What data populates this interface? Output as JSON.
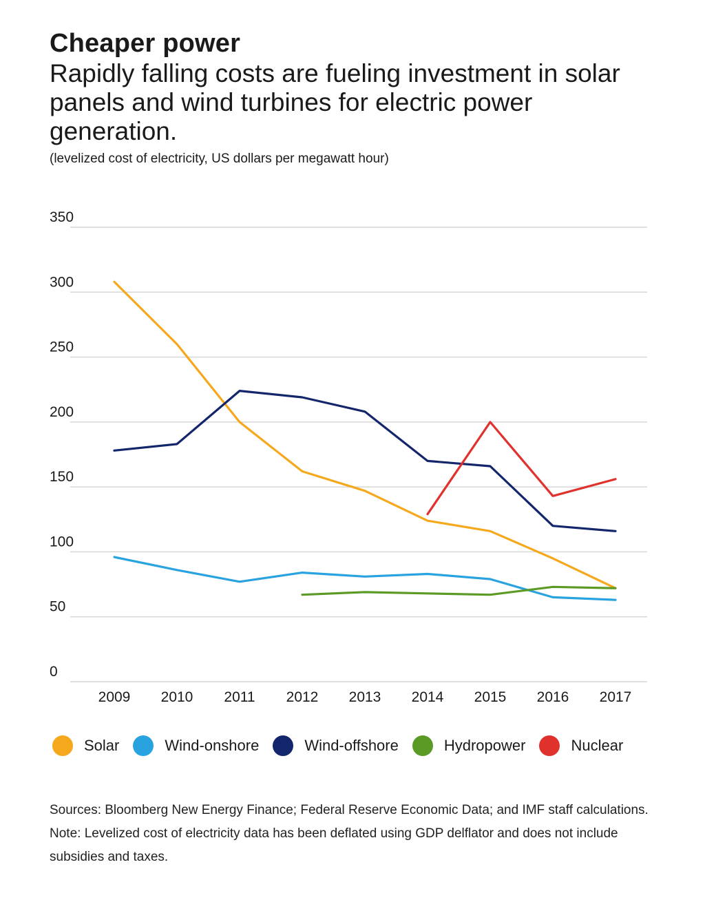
{
  "header": {
    "title": "Cheaper power",
    "subtitle": "Rapidly falling costs are fueling investment in solar panels and wind turbines for electric power generation.",
    "units": "(levelized cost of electricity, US dollars per megawatt hour)"
  },
  "chart_data": {
    "type": "line",
    "title": "Cheaper power",
    "xlabel": "",
    "ylabel": "US dollars per megawatt hour",
    "categories": [
      "2009",
      "2010",
      "2011",
      "2012",
      "2013",
      "2014",
      "2015",
      "2016",
      "2017"
    ],
    "ylim": [
      0,
      350
    ],
    "yticks": [
      "0",
      "50",
      "100",
      "150",
      "200",
      "250",
      "300",
      "350"
    ],
    "grid": true,
    "legend_position": "bottom",
    "series": [
      {
        "name": "Solar",
        "color": "#f5a81c",
        "values": [
          308,
          260,
          200,
          162,
          147,
          124,
          116,
          95,
          72
        ]
      },
      {
        "name": "Wind-onshore",
        "color": "#29a3e0",
        "values": [
          96,
          86,
          77,
          84,
          81,
          83,
          79,
          65,
          63
        ]
      },
      {
        "name": "Wind-offshore",
        "color": "#14266b",
        "values": [
          178,
          183,
          224,
          219,
          208,
          170,
          166,
          120,
          116
        ]
      },
      {
        "name": "Hydropower",
        "color": "#5c9a26",
        "values": [
          null,
          null,
          null,
          67,
          69,
          68,
          67,
          73,
          72
        ]
      },
      {
        "name": "Nuclear",
        "color": "#e0312d",
        "values": [
          null,
          null,
          null,
          null,
          null,
          129,
          200,
          143,
          156
        ]
      }
    ]
  },
  "footer": {
    "sources": "Sources: Bloomberg New Energy Finance; Federal Reserve Economic Data; and IMF staff calculations.",
    "note": "Note: Levelized cost of electricity data has been deflated using GDP delflator and does not include subsidies and taxes."
  }
}
